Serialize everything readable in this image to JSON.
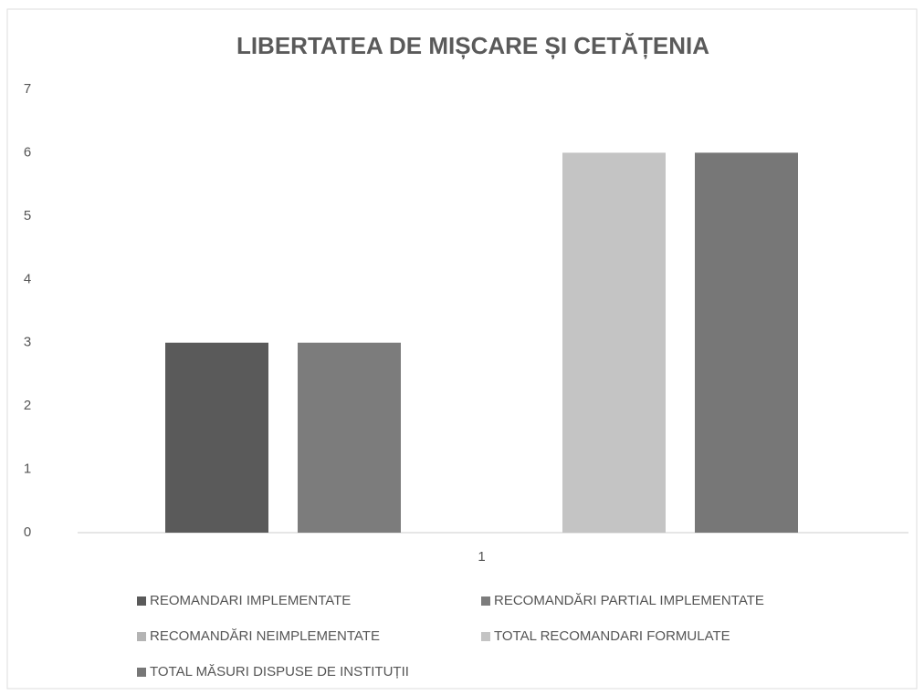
{
  "chart_data": {
    "type": "bar",
    "title": "LIBERTATEA DE MIȘCARE ȘI CETĂȚENIA",
    "categories": [
      "1"
    ],
    "series": [
      {
        "name": "REOMANDARI IMPLEMENTATE",
        "color": "#5a5a5a",
        "values": [
          3
        ]
      },
      {
        "name": "RECOMANDĂRI PARTIAL IMPLEMENTATE",
        "color": "#7c7c7c",
        "values": [
          3
        ]
      },
      {
        "name": "RECOMANDĂRI NEIMPLEMENTATE",
        "color": "#b4b4b4",
        "values": [
          0
        ]
      },
      {
        "name": "TOTAL RECOMANDARI FORMULATE",
        "color": "#c4c4c4",
        "values": [
          6
        ]
      },
      {
        "name": "TOTAL MĂSURI DISPUSE DE INSTITUȚII",
        "color": "#777777",
        "values": [
          6
        ]
      }
    ],
    "ylim": [
      0,
      7
    ],
    "yticks": [
      0,
      1,
      2,
      3,
      4,
      5,
      6,
      7
    ],
    "grid": false,
    "legend": "bottom"
  }
}
